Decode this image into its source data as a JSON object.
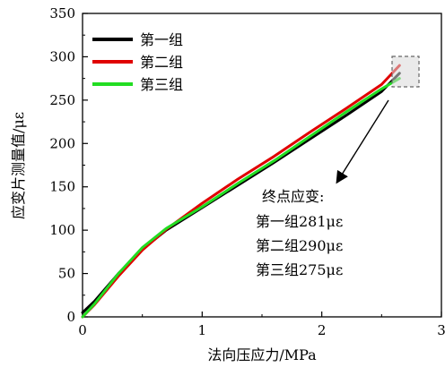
{
  "chart_data": {
    "type": "line",
    "xlabel": "法向压应力/MPa",
    "ylabel": "应变片测量值/με",
    "xlim": [
      0,
      3
    ],
    "ylim": [
      0,
      350
    ],
    "xticks": [
      "0",
      "1",
      "2",
      "3"
    ],
    "yticks": [
      "0",
      "50",
      "100",
      "150",
      "200",
      "250",
      "300",
      "350"
    ],
    "legend_position": "top-left",
    "grid": false,
    "series": [
      {
        "name": "第一组",
        "color": "#000000",
        "x": [
          0,
          0.1,
          0.3,
          0.5,
          0.7,
          1.0,
          1.3,
          1.6,
          1.9,
          2.2,
          2.5,
          2.65
        ],
        "y": [
          5,
          18,
          50,
          78,
          100,
          126,
          152,
          178,
          205,
          232,
          260,
          281
        ]
      },
      {
        "name": "第二组",
        "color": "#e00000",
        "x": [
          0,
          0.1,
          0.3,
          0.5,
          0.7,
          1.0,
          1.3,
          1.6,
          1.9,
          2.2,
          2.5,
          2.65
        ],
        "y": [
          0,
          14,
          47,
          77,
          101,
          131,
          159,
          185,
          213,
          240,
          268,
          290
        ]
      },
      {
        "name": "第三组",
        "color": "#22dd22",
        "x": [
          0,
          0.1,
          0.3,
          0.5,
          0.7,
          1.0,
          1.3,
          1.6,
          1.9,
          2.2,
          2.5,
          2.65
        ],
        "y": [
          0,
          15,
          50,
          80,
          102,
          127,
          154,
          180,
          208,
          236,
          263,
          275
        ]
      }
    ],
    "annotation": {
      "title": "终点应变:",
      "lines": [
        "第一组281με",
        "第二组290με",
        "第三组275με"
      ]
    }
  },
  "colors": {
    "highlight_box": "#d8d8d8"
  }
}
